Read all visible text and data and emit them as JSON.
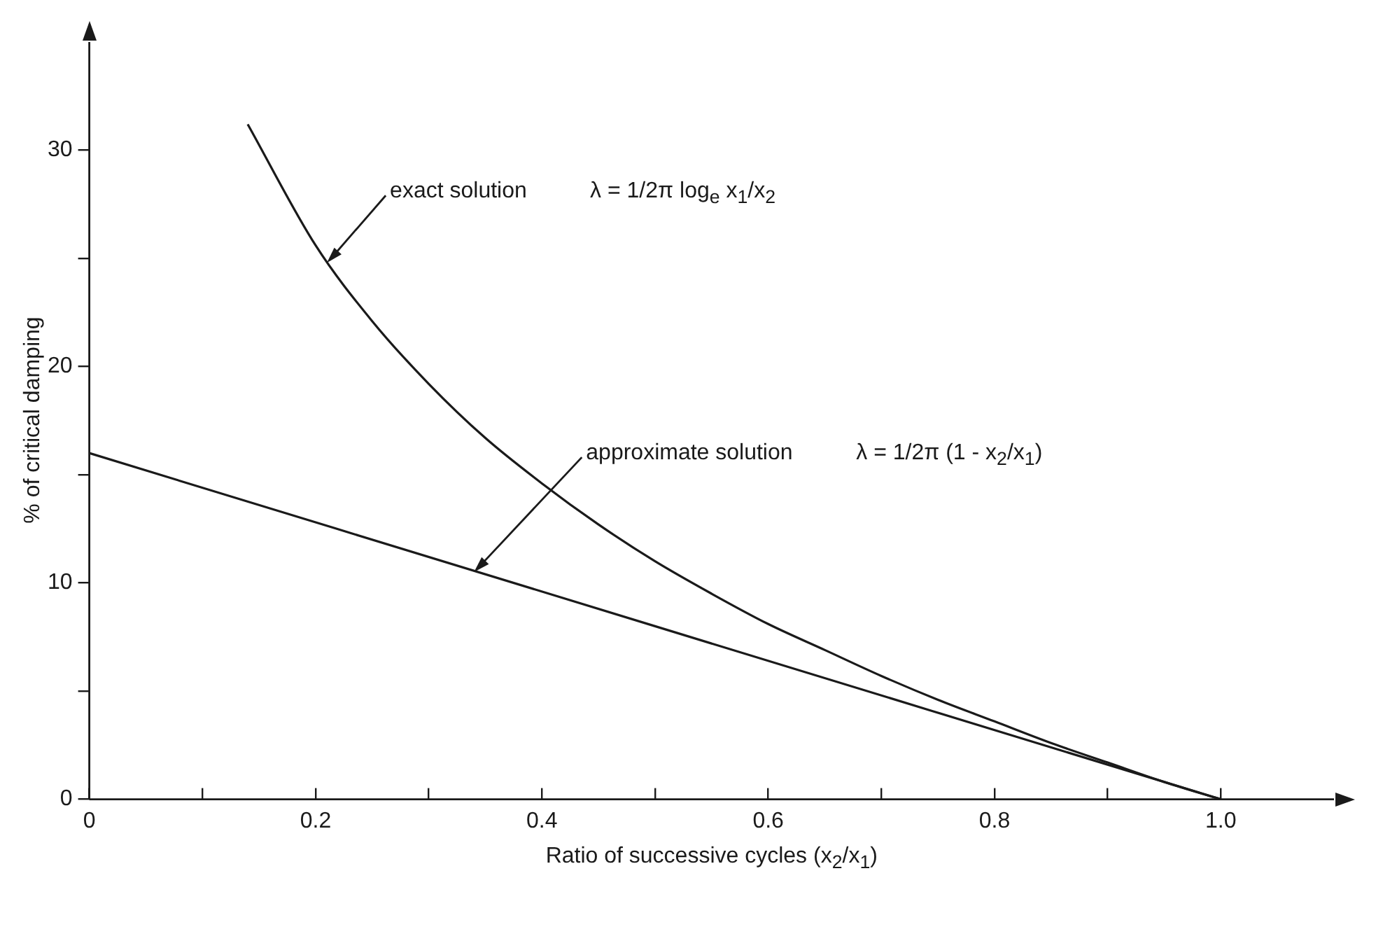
{
  "chart_data": {
    "type": "line",
    "xlabel": "Ratio of successive cycles (x$_{2}$/x$_{1}$)",
    "ylabel": "% of critical damping",
    "xlim": [
      0,
      1.1
    ],
    "ylim": [
      0,
      35
    ],
    "xticks": [
      0,
      {
        "value": 0.1,
        "label": null
      },
      0.2,
      {
        "value": 0.3,
        "label": null
      },
      0.4,
      {
        "value": 0.5,
        "label": null
      },
      0.6,
      {
        "value": 0.7,
        "label": null
      },
      0.8,
      {
        "value": 0.9,
        "label": null
      },
      {
        "value": 1.0,
        "label": "1.0"
      }
    ],
    "yticks": [
      0,
      {
        "value": 5,
        "label": null
      },
      10,
      {
        "value": 15,
        "label": null
      },
      20,
      {
        "value": 25,
        "label": null
      },
      30
    ],
    "series": [
      {
        "color": "#1a1a1a",
        "x": [
          0.14,
          0.2,
          0.25,
          0.3,
          0.35,
          0.4,
          0.45,
          0.5,
          0.55,
          0.6,
          0.65,
          0.7,
          0.75,
          0.8,
          0.85,
          0.9,
          0.95,
          1.0
        ],
        "values": [
          31.2,
          25.6,
          22.1,
          19.2,
          16.7,
          14.6,
          12.7,
          11.0,
          9.5,
          8.1,
          6.9,
          5.7,
          4.6,
          3.6,
          2.6,
          1.7,
          0.8,
          0
        ]
      },
      {
        "color": "#1a1a1a",
        "x": [
          0,
          0.5,
          1.0
        ],
        "values": [
          16,
          8,
          0
        ]
      }
    ],
    "annotations": [
      {
        "text": "exact solution",
        "x": 0.21,
        "y": 24.8
      },
      {
        "text": "approximate solution",
        "x": 0.34,
        "y": 10.5
      },
      "λ = 1/2π log$_{e}$ x$_{1}$/x$_{2}$",
      "λ = 1/2π (1 - x$_{2}$/x$_{1}$)"
    ],
    "grid": false,
    "legend": false,
    "marker": "none",
    "line_style": "solid"
  }
}
